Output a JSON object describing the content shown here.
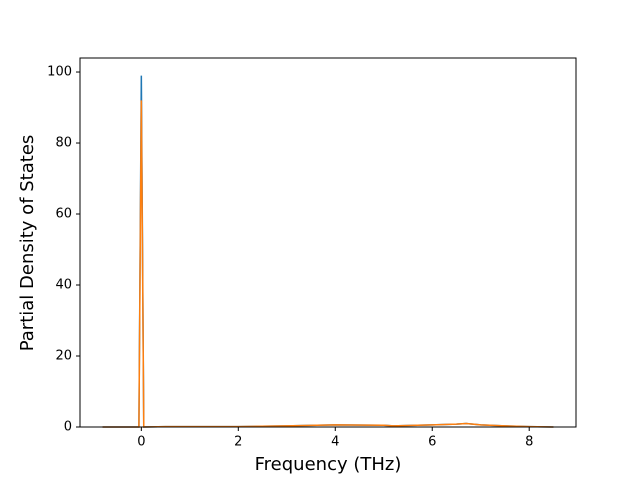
{
  "chart_data": {
    "type": "line",
    "x_label": "Frequency (THz)",
    "y_label": "Partial Density of States",
    "x": [
      -0.8,
      -0.05,
      0,
      0.05,
      0.5,
      1,
      2,
      3,
      4,
      5,
      5.2,
      5.7,
      6,
      6.5,
      6.7,
      7,
      7.5,
      8,
      8.5
    ],
    "series": [
      {
        "color": "#1f77b4",
        "values": [
          0,
          0,
          99,
          0,
          0.1,
          0.1,
          0.1,
          0.3,
          0.6,
          0.5,
          0.3,
          0.5,
          0.6,
          0.8,
          1.0,
          0.6,
          0.3,
          0.1,
          0
        ]
      },
      {
        "color": "#ff7f0e",
        "values": [
          0,
          0,
          92,
          0,
          0.1,
          0.1,
          0.1,
          0.3,
          0.6,
          0.5,
          0.3,
          0.5,
          0.6,
          0.8,
          1.0,
          0.6,
          0.3,
          0.1,
          0
        ]
      }
    ],
    "xlim": [
      -1.265,
      8.965
    ],
    "ylim": [
      0,
      103.95
    ],
    "xticks": [
      0,
      2,
      4,
      6,
      8
    ],
    "yticks": [
      0,
      20,
      40,
      60,
      80,
      100
    ],
    "grid": false
  }
}
